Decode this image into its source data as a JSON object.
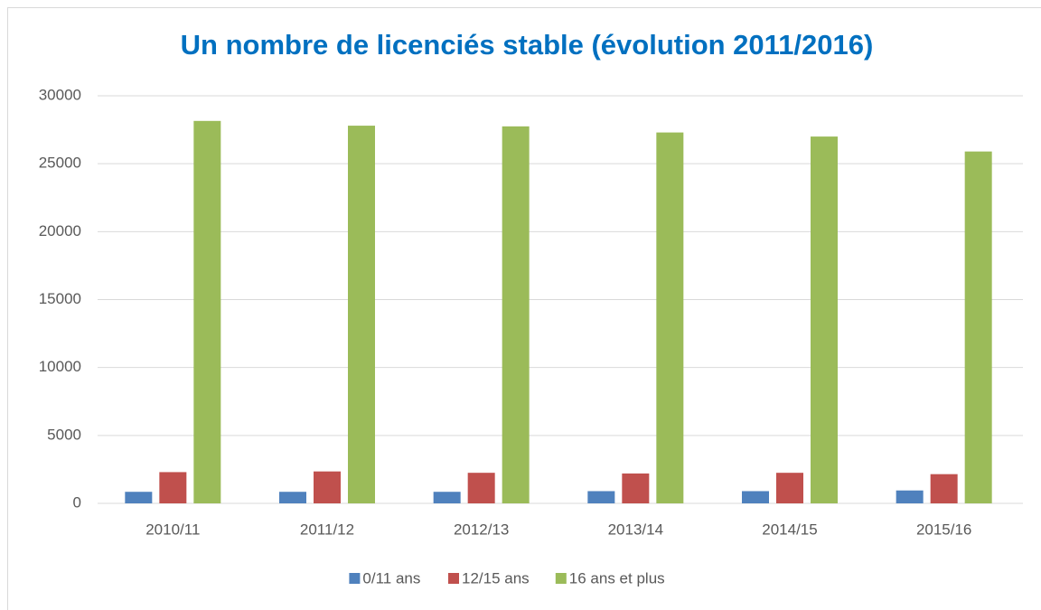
{
  "chart_data": {
    "type": "bar",
    "title": "Un nombre de licenciés stable (évolution 2011/2016)",
    "categories": [
      "2010/11",
      "2011/12",
      "2012/13",
      "2013/14",
      "2014/15",
      "2015/16"
    ],
    "series": [
      {
        "name": "0/11 ans",
        "color": "#4f81bd",
        "values": [
          850,
          850,
          850,
          900,
          900,
          950
        ]
      },
      {
        "name": "12/15 ans",
        "color": "#c0504d",
        "values": [
          2300,
          2350,
          2250,
          2200,
          2250,
          2150
        ]
      },
      {
        "name": "16 ans et plus",
        "color": "#9bbb59",
        "values": [
          28150,
          27800,
          27750,
          27300,
          27000,
          25900
        ]
      }
    ],
    "ylim": [
      0,
      30000
    ],
    "yticks": [
      0,
      5000,
      10000,
      15000,
      20000,
      25000,
      30000
    ],
    "grid": true,
    "legend": "bottom"
  }
}
